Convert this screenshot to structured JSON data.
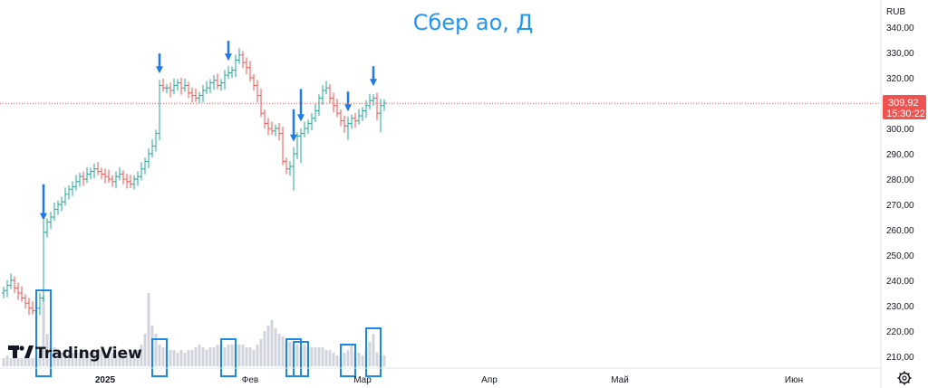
{
  "chart_data": {
    "type": "ohlc-bar",
    "title": "Сбер ао, Д",
    "currency": "RUB",
    "last_price": "309,92",
    "countdown": "15:30:22",
    "y_axis": {
      "ticks": [
        "340,00",
        "330,00",
        "320,00",
        "310,00",
        "300,00",
        "290,00",
        "280,00",
        "270,00",
        "260,00",
        "250,00",
        "240,00",
        "230,00",
        "220,00",
        "210,00"
      ],
      "range": [
        205,
        345
      ]
    },
    "x_axis": {
      "ticks": [
        {
          "label": "2025",
          "index": 28,
          "bold": true
        },
        {
          "label": "Фев",
          "index": 68
        },
        {
          "label": "Мар",
          "index": 99
        },
        {
          "label": "Апр",
          "index": 134
        },
        {
          "label": "Май",
          "index": 170
        },
        {
          "label": "Июн",
          "index": 218
        }
      ]
    },
    "colors": {
      "up": "#26a69a",
      "down": "#ef5350",
      "volume": "#d1d4dc",
      "arrow": "#1e7ae8",
      "highlight": "#1e88e5",
      "price_line": "#ef5350"
    },
    "price_points": [
      236,
      238,
      240,
      237,
      235,
      233,
      231,
      229,
      228,
      229,
      233,
      259,
      263,
      265,
      268,
      270,
      271,
      274,
      276,
      277,
      279,
      281,
      280,
      282,
      283,
      284,
      283,
      282,
      281,
      280,
      279,
      281,
      282,
      280,
      279,
      278,
      280,
      281,
      284,
      287,
      290,
      293,
      298,
      317,
      316,
      316,
      315,
      317,
      318,
      316,
      317,
      314,
      313,
      312,
      313,
      315,
      316,
      318,
      319,
      317,
      318,
      321,
      322,
      323,
      327,
      329,
      326,
      324,
      320,
      317,
      313,
      306,
      302,
      300,
      299,
      300,
      298,
      287,
      284,
      285,
      290,
      297,
      298,
      300,
      302,
      304,
      307,
      312,
      315,
      316,
      312,
      309,
      306,
      303,
      301,
      302,
      304,
      303,
      305,
      307,
      309,
      311,
      312,
      306,
      309,
      310
    ],
    "volume_points": [
      3,
      4,
      3,
      4,
      3,
      3,
      4,
      3,
      3,
      4,
      5,
      26,
      12,
      9,
      7,
      6,
      5,
      6,
      5,
      5,
      6,
      5,
      5,
      6,
      5,
      5,
      5,
      6,
      5,
      4,
      5,
      4,
      5,
      5,
      5,
      6,
      5,
      6,
      8,
      12,
      27,
      15,
      12,
      8,
      7,
      7,
      6,
      6,
      5,
      6,
      5,
      6,
      6,
      7,
      8,
      7,
      6,
      7,
      7,
      8,
      8,
      7,
      8,
      8,
      8,
      8,
      8,
      7,
      7,
      6,
      8,
      10,
      13,
      15,
      17,
      14,
      12,
      11,
      10,
      9,
      8,
      8,
      7,
      8,
      7,
      7,
      7,
      7,
      7,
      6,
      6,
      5,
      4,
      3,
      5,
      6,
      8,
      5,
      5,
      4,
      6,
      9,
      12,
      5,
      4,
      4
    ],
    "arrow_indices": [
      11,
      43,
      62,
      80,
      82,
      95,
      102
    ],
    "volume_highlights": [
      [
        11
      ],
      [
        43
      ],
      [
        62
      ],
      [
        80
      ],
      [
        82
      ],
      [
        95
      ],
      [
        102
      ]
    ]
  },
  "brand": {
    "logo_text": "TradingView"
  },
  "settings_icon": "gear-icon"
}
